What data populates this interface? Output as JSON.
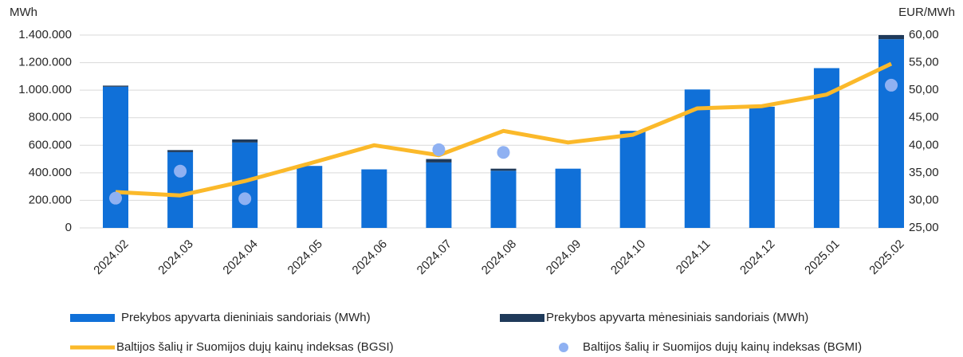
{
  "chart_data": {
    "type": "bar",
    "y_label": "MWh",
    "y2_label": "EUR/MWh",
    "categories": [
      "2024.02",
      "2024.03",
      "2024.04",
      "2024.05",
      "2024.06",
      "2024.07",
      "2024.08",
      "2024.09",
      "2024.10",
      "2024.11",
      "2024.12",
      "2025.01",
      "2025.02"
    ],
    "series": [
      {
        "name": "Prekybos apyvarta dieniniais sandoriais (MWh)",
        "type": "bar",
        "color": "#1070d8",
        "values": [
          1025000,
          550000,
          620000,
          450000,
          425000,
          475000,
          415000,
          430000,
          705000,
          1005000,
          880000,
          1160000,
          1370000
        ]
      },
      {
        "name": "Prekybos apyvarta mėnesiniais sandoriais (MWh)",
        "type": "bar",
        "color": "#1f3a5a",
        "values": [
          8000,
          15000,
          22000,
          0,
          0,
          25000,
          15000,
          0,
          0,
          0,
          0,
          0,
          30000
        ]
      },
      {
        "name": "Baltijos šalių ir Suomijos dujų kainų indeksas (BGSI)",
        "type": "line",
        "axis": "y2",
        "color": "#fbb92a",
        "values": [
          31.5,
          30.9,
          33.5,
          36.7,
          40.0,
          38.2,
          42.6,
          40.5,
          41.9,
          46.7,
          47.1,
          49.2,
          54.8
        ]
      },
      {
        "name": "Baltijos šalių ir Suomijos dujų kainų indeksas (BGMI)",
        "type": "scatter",
        "axis": "y2",
        "color": "#8fb1f2",
        "values": [
          30.4,
          35.3,
          30.3,
          null,
          null,
          39.2,
          38.7,
          null,
          null,
          null,
          null,
          null,
          50.9
        ]
      }
    ],
    "ylim": [
      0,
      1400000
    ],
    "yticks": [
      0,
      {
        "value": 200000,
        "label": "200.000"
      },
      {
        "value": 400000,
        "label": "400.000"
      },
      {
        "value": 600000,
        "label": "600.000"
      },
      {
        "value": 800000,
        "label": "800.000"
      },
      {
        "value": 1000000,
        "label": "1.000.000"
      },
      {
        "value": 1200000,
        "label": "1.200.000"
      },
      {
        "value": 1400000,
        "label": "1.400.000"
      }
    ],
    "y2lim": [
      25,
      60
    ],
    "y2ticks": [
      {
        "value": 25,
        "label": "25,00"
      },
      {
        "value": 30,
        "label": "30,00"
      },
      {
        "value": 35,
        "label": "35,00"
      },
      {
        "value": 40,
        "label": "40,00"
      },
      {
        "value": 45,
        "label": "45,00"
      },
      {
        "value": 50,
        "label": "50,00"
      },
      {
        "value": 55,
        "label": "55,00"
      },
      {
        "value": 60,
        "label": "60,00"
      }
    ],
    "grid": true
  }
}
